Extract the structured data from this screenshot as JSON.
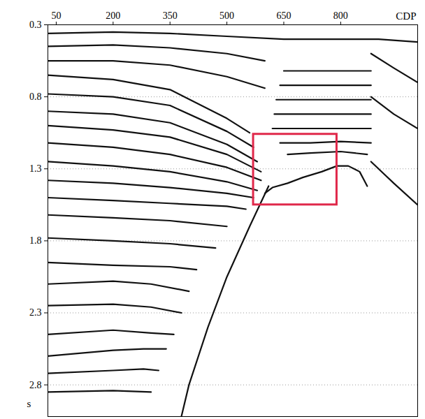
{
  "chart_data": {
    "type": "line",
    "x_label": "CDP",
    "y_label": "s",
    "xlim": [
      28,
      1003
    ],
    "ylim": [
      0.3,
      3.02
    ],
    "xticks": [
      50,
      200,
      350,
      500,
      650,
      800
    ],
    "yticks": [
      0.3,
      0.8,
      1.3,
      1.8,
      2.3,
      2.8
    ],
    "grid": true,
    "color": "#111111",
    "series": [
      {
        "x": [
          28,
          200,
          350,
          500,
          650,
          800,
          900,
          1003
        ],
        "values": [
          0.36,
          0.35,
          0.36,
          0.38,
          0.4,
          0.4,
          0.4,
          0.42
        ]
      },
      {
        "x": [
          28,
          200,
          350,
          500,
          600
        ],
        "values": [
          0.45,
          0.44,
          0.46,
          0.5,
          0.55
        ]
      },
      {
        "x": [
          28,
          200,
          350,
          500,
          600
        ],
        "values": [
          0.55,
          0.55,
          0.58,
          0.66,
          0.74
        ]
      },
      {
        "x": [
          650,
          720,
          800,
          880
        ],
        "values": [
          0.62,
          0.62,
          0.62,
          0.62
        ]
      },
      {
        "x": [
          640,
          720,
          800,
          880
        ],
        "values": [
          0.72,
          0.72,
          0.72,
          0.72
        ]
      },
      {
        "x": [
          630,
          720,
          800,
          880
        ],
        "values": [
          0.82,
          0.82,
          0.82,
          0.82
        ]
      },
      {
        "x": [
          625,
          720,
          800,
          880
        ],
        "values": [
          0.92,
          0.92,
          0.92,
          0.92
        ]
      },
      {
        "x": [
          620,
          720,
          800,
          880
        ],
        "values": [
          1.02,
          1.02,
          1.02,
          1.02
        ]
      },
      {
        "x": [
          640,
          720,
          800,
          880
        ],
        "values": [
          1.12,
          1.12,
          1.11,
          1.12
        ]
      },
      {
        "x": [
          660,
          720,
          800,
          870
        ],
        "values": [
          1.2,
          1.19,
          1.18,
          1.2
        ]
      },
      {
        "x": [
          28,
          200,
          350,
          500,
          560
        ],
        "values": [
          0.65,
          0.68,
          0.75,
          0.95,
          1.05
        ]
      },
      {
        "x": [
          28,
          200,
          350,
          500,
          570
        ],
        "values": [
          0.78,
          0.8,
          0.86,
          1.04,
          1.15
        ]
      },
      {
        "x": [
          28,
          200,
          350,
          500,
          580
        ],
        "values": [
          0.9,
          0.92,
          0.98,
          1.13,
          1.25
        ]
      },
      {
        "x": [
          28,
          200,
          350,
          500,
          590
        ],
        "values": [
          1.0,
          1.03,
          1.08,
          1.2,
          1.32
        ]
      },
      {
        "x": [
          28,
          200,
          350,
          500,
          590
        ],
        "values": [
          1.12,
          1.15,
          1.2,
          1.29,
          1.38
        ]
      },
      {
        "x": [
          28,
          200,
          350,
          500,
          580
        ],
        "values": [
          1.25,
          1.28,
          1.32,
          1.39,
          1.45
        ]
      },
      {
        "x": [
          28,
          200,
          350,
          500,
          570
        ],
        "values": [
          1.38,
          1.4,
          1.43,
          1.47,
          1.5
        ]
      },
      {
        "x": [
          28,
          200,
          350,
          500,
          550
        ],
        "values": [
          1.5,
          1.52,
          1.54,
          1.56,
          1.58
        ]
      },
      {
        "x": [
          28,
          200,
          350,
          500
        ],
        "values": [
          1.62,
          1.64,
          1.66,
          1.7
        ]
      },
      {
        "x": [
          28,
          200,
          350,
          470
        ],
        "values": [
          1.78,
          1.8,
          1.82,
          1.85
        ]
      },
      {
        "x": [
          28,
          200,
          350,
          420
        ],
        "values": [
          1.95,
          1.97,
          1.98,
          2.0
        ]
      },
      {
        "x": [
          28,
          200,
          300,
          400
        ],
        "values": [
          2.1,
          2.08,
          2.1,
          2.15
        ]
      },
      {
        "x": [
          28,
          200,
          300,
          380
        ],
        "values": [
          2.25,
          2.24,
          2.26,
          2.3
        ]
      },
      {
        "x": [
          28,
          200,
          300,
          360
        ],
        "values": [
          2.45,
          2.42,
          2.44,
          2.45
        ]
      },
      {
        "x": [
          28,
          200,
          280,
          340
        ],
        "values": [
          2.6,
          2.56,
          2.55,
          2.55
        ]
      },
      {
        "x": [
          28,
          200,
          280,
          320
        ],
        "values": [
          2.72,
          2.7,
          2.69,
          2.7
        ]
      },
      {
        "x": [
          28,
          200,
          300
        ],
        "values": [
          2.85,
          2.84,
          2.85
        ]
      },
      {
        "x": [
          600,
          620,
          660,
          700,
          750,
          790,
          820,
          850,
          870
        ],
        "values": [
          1.47,
          1.43,
          1.4,
          1.36,
          1.32,
          1.28,
          1.28,
          1.32,
          1.42
        ]
      },
      {
        "x": [
          610,
          560,
          500,
          450,
          400,
          380
        ],
        "values": [
          1.42,
          1.7,
          2.05,
          2.4,
          2.8,
          3.02
        ]
      },
      {
        "x": [
          880,
          940,
          1003
        ],
        "values": [
          0.5,
          0.6,
          0.7
        ]
      },
      {
        "x": [
          880,
          940,
          1003
        ],
        "values": [
          0.8,
          0.92,
          1.02
        ]
      },
      {
        "x": [
          880,
          940,
          1003
        ],
        "values": [
          1.25,
          1.4,
          1.55
        ]
      }
    ],
    "highlight_box": {
      "xlim": [
        570,
        790
      ],
      "ylim": [
        1.06,
        1.55
      ],
      "color": "#e0284a"
    }
  }
}
